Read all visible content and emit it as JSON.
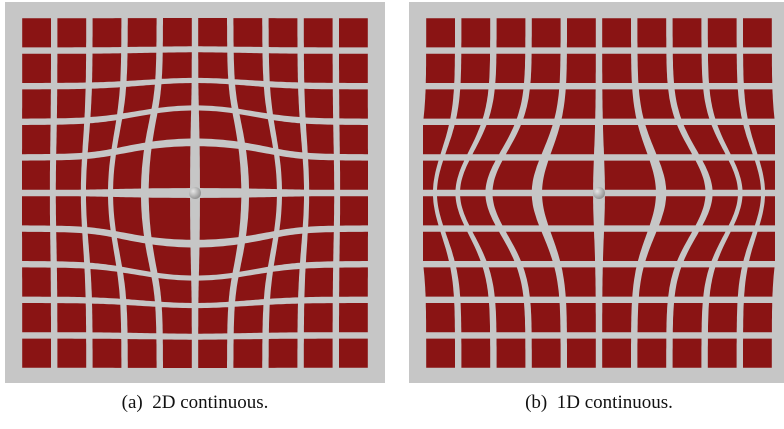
{
  "figure": {
    "panels": [
      {
        "id": "a",
        "caption_label": "(a)",
        "caption_text": "2D continuous.",
        "deformation": "2d",
        "grid_cells": 10
      },
      {
        "id": "b",
        "caption_label": "(b)",
        "caption_text": "1D continuous.",
        "deformation": "1d",
        "grid_cells": 10
      }
    ],
    "colors": {
      "tile": "#8a1414",
      "gap": "#c8c8c8",
      "background": "#c6c6c6",
      "sphere": "#8f8f8f",
      "sphere_highlight": "#e6e6e6"
    }
  }
}
